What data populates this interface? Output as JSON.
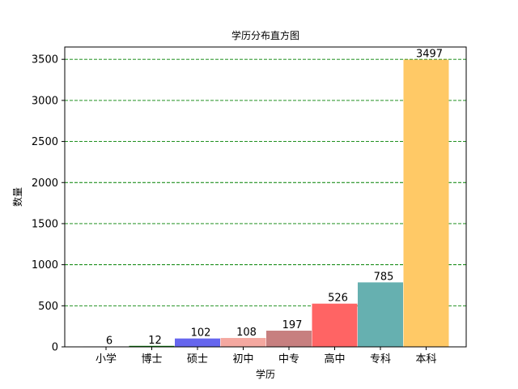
{
  "chart_data": {
    "type": "bar",
    "title": "学历分布直方图",
    "xlabel": "学历",
    "ylabel": "数量",
    "categories": [
      "小学",
      "博士",
      "硕士",
      "初中",
      "中专",
      "高中",
      "专科",
      "本科"
    ],
    "values": [
      6,
      12,
      102,
      108,
      197,
      526,
      785,
      3497
    ],
    "data_labels": [
      "6",
      "12",
      "102",
      "108",
      "197",
      "526",
      "785",
      "3497"
    ],
    "colors": [
      "#e0e0e0",
      "#008000",
      "#6666ee",
      "#f4a8a0",
      "#c77f7f",
      "#ff6464",
      "#66b0b0",
      "#ffc966"
    ],
    "ylim": [
      0,
      3650
    ],
    "yticks": [
      0,
      500,
      1000,
      1500,
      2000,
      2500,
      3000,
      3500
    ],
    "ytick_labels": [
      "0",
      "500",
      "1000",
      "1500",
      "2000",
      "2500",
      "3000",
      "3500"
    ],
    "grid": true,
    "grid_color": "#008000",
    "grid_style": "dashed",
    "legend": false
  }
}
